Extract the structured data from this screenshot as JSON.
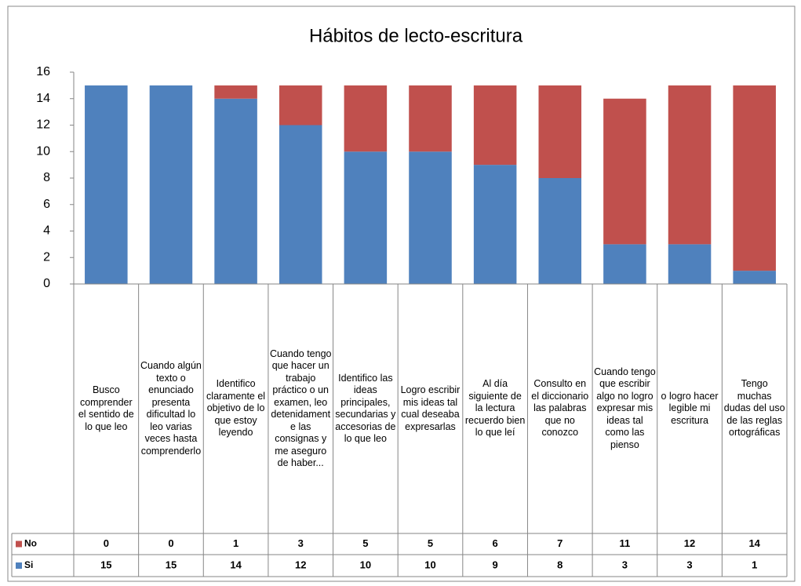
{
  "chart_data": {
    "type": "stacked_bar",
    "title": "Hábitos de lecto-escritura",
    "categories": [
      "Busco comprender el sentido de lo que leo",
      "Cuando algún texto o enunciado presenta dificultad lo leo varias veces hasta comprenderlo",
      "Identifico claramente el objetivo de lo que estoy leyendo",
      "Cuando tengo que hacer un trabajo práctico o un examen, leo detenidamente las consignas y me aseguro de haber...",
      "Identifico las ideas principales, secundarias y accesorias de lo que leo",
      "Logro escribir mis ideas tal cual deseaba expresarlas",
      "Al día siguiente de la lectura recuerdo bien lo que leí",
      "Consulto en el diccionario las palabras que no conozco",
      "Cuando tengo que escribir algo no logro expresar mis ideas tal como las pienso",
      "o logro hacer legible mi escritura",
      "Tengo muchas dudas del uso de las reglas ortográficas"
    ],
    "series": [
      {
        "name": "Si",
        "color": "#4f81bd",
        "values": [
          15,
          15,
          14,
          12,
          10,
          10,
          9,
          8,
          3,
          3,
          1
        ]
      },
      {
        "name": "No",
        "color": "#c0504d",
        "values": [
          0,
          0,
          1,
          3,
          5,
          5,
          6,
          7,
          11,
          12,
          14
        ]
      }
    ],
    "ylim": [
      0,
      16
    ],
    "yticks": [
      0,
      2,
      4,
      6,
      8,
      10,
      12,
      14,
      16
    ],
    "grid": false
  }
}
